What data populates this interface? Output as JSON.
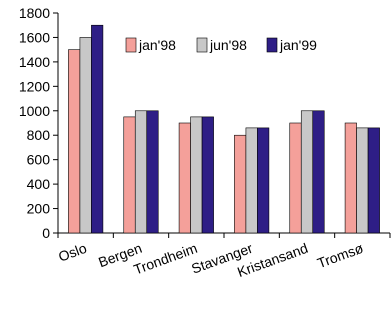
{
  "chart_data": {
    "type": "bar",
    "categories": [
      "Oslo",
      "Bergen",
      "Trondheim",
      "Stavanger",
      "Kristansand",
      "Tromsø"
    ],
    "series": [
      {
        "name": "jan'98",
        "values": [
          1500,
          950,
          900,
          800,
          900,
          900
        ]
      },
      {
        "name": "jun'98",
        "values": [
          1600,
          1000,
          950,
          860,
          1000,
          860
        ]
      },
      {
        "name": "jan'99",
        "values": [
          1700,
          1000,
          950,
          860,
          1000,
          860
        ]
      }
    ],
    "ylim": [
      0,
      1800
    ],
    "yticks": [
      0,
      200,
      400,
      600,
      800,
      1000,
      1200,
      1400,
      1600,
      1800
    ],
    "title": "",
    "xlabel": "",
    "ylabel": "",
    "grid": false,
    "legend_position": "top-right",
    "colors": {
      "jan'98": "#f4a09a",
      "jun'98": "#c8c8c8",
      "jan'99": "#2e1e86"
    }
  }
}
